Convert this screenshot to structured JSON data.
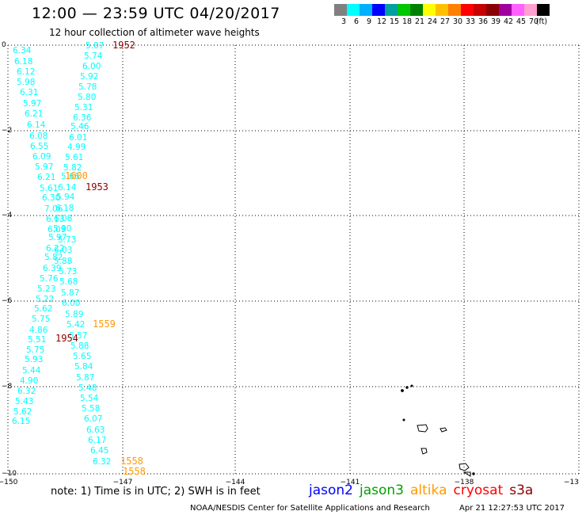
{
  "title": "12:00 — 23:59 UTC 04/20/2017",
  "subtitle": "12 hour collection of altimeter wave heights",
  "color_scale": {
    "colors": [
      "#808080",
      "#00ffff",
      "#00b0ff",
      "#0000ff",
      "#00a0a0",
      "#00c800",
      "#008000",
      "#ffff00",
      "#ffc000",
      "#ff8000",
      "#ff0000",
      "#c80000",
      "#8b0000",
      "#a000a0",
      "#ff60ff",
      "#ffa0d0",
      "#000000"
    ],
    "labels": [
      "3",
      "6",
      "9",
      "12",
      "15",
      "18",
      "21",
      "24",
      "27",
      "30",
      "33",
      "36",
      "39",
      "42",
      "45",
      "70",
      "(ft)"
    ]
  },
  "axes": {
    "lat_labels": [
      "0",
      "−2",
      "−4",
      "−6",
      "−8",
      "−10"
    ],
    "lon_labels": [
      "−150",
      "−147",
      "−144",
      "−141",
      "−138",
      "−13"
    ]
  },
  "measurements": [
    {
      "v": "6.34",
      "c": "#00ffff"
    },
    {
      "v": "6.18",
      "c": "#00ffff"
    },
    {
      "v": "6.12",
      "c": "#00ffff"
    },
    {
      "v": "5.98",
      "c": "#00ffff"
    },
    {
      "v": "6.31",
      "c": "#00ffff"
    },
    {
      "v": "5.97",
      "c": "#00ffff"
    },
    {
      "v": "6.21",
      "c": "#00ffff"
    },
    {
      "v": "6.14",
      "c": "#00ffff"
    },
    {
      "v": "6.08",
      "c": "#00ffff"
    },
    {
      "v": "6.55",
      "c": "#00ffff"
    },
    {
      "v": "6.09",
      "c": "#00ffff"
    },
    {
      "v": "5.97",
      "c": "#00ffff"
    },
    {
      "v": "6.21",
      "c": "#00ffff"
    },
    {
      "v": "5.61",
      "c": "#00ffff"
    },
    {
      "v": "6.30",
      "c": "#00ffff"
    },
    {
      "v": "7.06",
      "c": "#00ffff"
    },
    {
      "v": "6.13",
      "c": "#00ffff"
    },
    {
      "v": "6.09",
      "c": "#00ffff"
    },
    {
      "v": "5.97",
      "c": "#00ffff"
    },
    {
      "v": "6.22",
      "c": "#00ffff"
    },
    {
      "v": "5.82",
      "c": "#00ffff"
    },
    {
      "v": "6.39",
      "c": "#00ffff"
    },
    {
      "v": "5.76",
      "c": "#00ffff"
    },
    {
      "v": "5.23",
      "c": "#00ffff"
    },
    {
      "v": "5.22",
      "c": "#00ffff"
    },
    {
      "v": "5.62",
      "c": "#00ffff"
    },
    {
      "v": "5.75",
      "c": "#00ffff"
    },
    {
      "v": "4.86",
      "c": "#00ffff"
    },
    {
      "v": "5.51",
      "c": "#00ffff"
    },
    {
      "v": "5.75",
      "c": "#00ffff"
    },
    {
      "v": "5.93",
      "c": "#00ffff"
    },
    {
      "v": "5.44",
      "c": "#00ffff"
    },
    {
      "v": "4.90",
      "c": "#00ffff"
    },
    {
      "v": "6.32",
      "c": "#00ffff"
    },
    {
      "v": "5.43",
      "c": "#00ffff"
    },
    {
      "v": "5.62",
      "c": "#00ffff"
    },
    {
      "v": "6.15",
      "c": "#00ffff"
    },
    {
      "v": "5.07",
      "c": "#00ffff"
    },
    {
      "v": "5.74",
      "c": "#00ffff"
    },
    {
      "v": "6.00",
      "c": "#00ffff"
    },
    {
      "v": "5.92",
      "c": "#00ffff"
    },
    {
      "v": "5.78",
      "c": "#00ffff"
    },
    {
      "v": "5.80",
      "c": "#00ffff"
    },
    {
      "v": "5.31",
      "c": "#00ffff"
    },
    {
      "v": "6.36",
      "c": "#00ffff"
    },
    {
      "v": "5.46",
      "c": "#00ffff"
    },
    {
      "v": "6.01",
      "c": "#00ffff"
    },
    {
      "v": "4.99",
      "c": "#00ffff"
    },
    {
      "v": "5.61",
      "c": "#00ffff"
    },
    {
      "v": "5.82",
      "c": "#00ffff"
    },
    {
      "v": "5.66",
      "c": "#00ffff"
    },
    {
      "v": "6.14",
      "c": "#00ffff"
    },
    {
      "v": "5.94",
      "c": "#00ffff"
    },
    {
      "v": "6.18",
      "c": "#00ffff"
    },
    {
      "v": "6.08",
      "c": "#00ffff"
    },
    {
      "v": "5.90",
      "c": "#00ffff"
    },
    {
      "v": "5.73",
      "c": "#00ffff"
    },
    {
      "v": "6.03",
      "c": "#00ffff"
    },
    {
      "v": "5.88",
      "c": "#00ffff"
    },
    {
      "v": "5.73",
      "c": "#00ffff"
    },
    {
      "v": "5.68",
      "c": "#00ffff"
    },
    {
      "v": "5.87",
      "c": "#00ffff"
    },
    {
      "v": "6.00",
      "c": "#00ffff"
    },
    {
      "v": "5.89",
      "c": "#00ffff"
    },
    {
      "v": "5.42",
      "c": "#00ffff"
    },
    {
      "v": "5.57",
      "c": "#00ffff"
    },
    {
      "v": "5.88",
      "c": "#00ffff"
    },
    {
      "v": "5.65",
      "c": "#00ffff"
    },
    {
      "v": "5.84",
      "c": "#00ffff"
    },
    {
      "v": "5.87",
      "c": "#00ffff"
    },
    {
      "v": "5.48",
      "c": "#00ffff"
    },
    {
      "v": "5.54",
      "c": "#00ffff"
    },
    {
      "v": "5.58",
      "c": "#00ffff"
    },
    {
      "v": "6.07",
      "c": "#00ffff"
    },
    {
      "v": "6.63",
      "c": "#00ffff"
    },
    {
      "v": "6.17",
      "c": "#00ffff"
    },
    {
      "v": "6.45",
      "c": "#00ffff"
    },
    {
      "v": "6.32",
      "c": "#00ffff"
    }
  ],
  "time_labels": [
    {
      "t": "1952",
      "c": "#8b0000"
    },
    {
      "t": "1600",
      "c": "#ff9900"
    },
    {
      "t": "1953",
      "c": "#8b0000"
    },
    {
      "t": "1559",
      "c": "#ff9900"
    },
    {
      "t": "1954",
      "c": "#8b0000"
    },
    {
      "t": "1558",
      "c": "#ff9900"
    },
    {
      "t": "1558",
      "c": "#ff9900"
    }
  ],
  "note": "note: 1) Time is in UTC; 2) SWH is in feet",
  "satellites": [
    {
      "name": "jason2",
      "color": "#0000ff"
    },
    {
      "name": "jason3",
      "color": "#00a000"
    },
    {
      "name": "altika",
      "color": "#ff9900"
    },
    {
      "name": "cryosat",
      "color": "#ff0000"
    },
    {
      "name": "s3a",
      "color": "#8b0000"
    }
  ],
  "credit": "NOAA/NESDIS Center for Satellite Applications and Research",
  "timestamp": "Apr 21 12:27:53 UTC 2017"
}
